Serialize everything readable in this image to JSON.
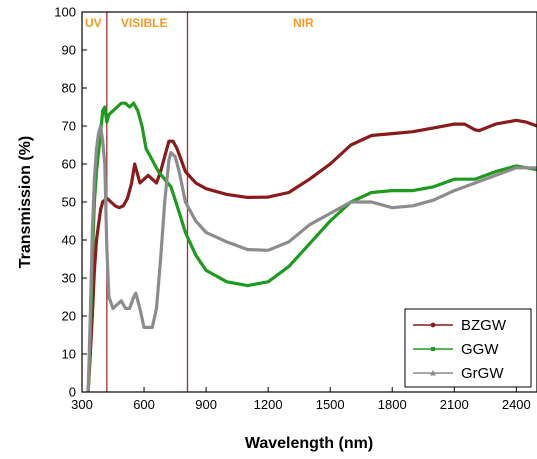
{
  "chart_data": {
    "type": "line",
    "xlabel": "Wavelength (nm)",
    "ylabel": "Transmission (%)",
    "xlim": [
      300,
      2500
    ],
    "ylim": [
      0,
      100
    ],
    "xticks": [
      300,
      600,
      900,
      1200,
      1500,
      1800,
      2100,
      2400
    ],
    "yticks": [
      0,
      10,
      20,
      30,
      40,
      50,
      60,
      70,
      80,
      90,
      100
    ],
    "grid": false,
    "legend_position": "bottom-right",
    "regions": [
      {
        "label": "UV",
        "x_start": 300,
        "x_end": 420
      },
      {
        "label": "VISIBLE",
        "x_start": 420,
        "x_end": 810
      },
      {
        "label": "NIR",
        "x_start": 810,
        "x_end": 2500
      }
    ],
    "region_boundaries": [
      420,
      810
    ],
    "series": [
      {
        "name": "BZGW",
        "color": "#8b1a1a",
        "marker": "circle",
        "points": [
          [
            330,
            0
          ],
          [
            340,
            10
          ],
          [
            350,
            20
          ],
          [
            360,
            32
          ],
          [
            370,
            40
          ],
          [
            380,
            44
          ],
          [
            390,
            48
          ],
          [
            400,
            50
          ],
          [
            420,
            51
          ],
          [
            440,
            50
          ],
          [
            460,
            49
          ],
          [
            480,
            48.5
          ],
          [
            500,
            49
          ],
          [
            520,
            51
          ],
          [
            540,
            55
          ],
          [
            555,
            60
          ],
          [
            565,
            58
          ],
          [
            580,
            55
          ],
          [
            600,
            56
          ],
          [
            620,
            57
          ],
          [
            640,
            56
          ],
          [
            660,
            55
          ],
          [
            680,
            58
          ],
          [
            700,
            62
          ],
          [
            720,
            66
          ],
          [
            740,
            66
          ],
          [
            760,
            64
          ],
          [
            780,
            61
          ],
          [
            800,
            58
          ],
          [
            850,
            55
          ],
          [
            900,
            53.5
          ],
          [
            1000,
            52
          ],
          [
            1100,
            51.2
          ],
          [
            1200,
            51.3
          ],
          [
            1300,
            52.5
          ],
          [
            1400,
            56
          ],
          [
            1500,
            60
          ],
          [
            1600,
            65
          ],
          [
            1700,
            67.5
          ],
          [
            1800,
            68
          ],
          [
            1900,
            68.5
          ],
          [
            2000,
            69.5
          ],
          [
            2100,
            70.5
          ],
          [
            2150,
            70.5
          ],
          [
            2200,
            69
          ],
          [
            2220,
            68.8
          ],
          [
            2300,
            70.5
          ],
          [
            2400,
            71.5
          ],
          [
            2450,
            71
          ],
          [
            2500,
            70
          ]
        ]
      },
      {
        "name": "GGW",
        "color": "#1e9a1e",
        "marker": "square",
        "points": [
          [
            330,
            0
          ],
          [
            340,
            15
          ],
          [
            350,
            35
          ],
          [
            360,
            50
          ],
          [
            370,
            58
          ],
          [
            380,
            63
          ],
          [
            390,
            68
          ],
          [
            400,
            74
          ],
          [
            410,
            75
          ],
          [
            420,
            71
          ],
          [
            430,
            73
          ],
          [
            450,
            74
          ],
          [
            470,
            75
          ],
          [
            490,
            76
          ],
          [
            510,
            76
          ],
          [
            530,
            75
          ],
          [
            550,
            76
          ],
          [
            570,
            74
          ],
          [
            590,
            70
          ],
          [
            610,
            64
          ],
          [
            630,
            62
          ],
          [
            650,
            60
          ],
          [
            670,
            58
          ],
          [
            700,
            56
          ],
          [
            730,
            54
          ],
          [
            760,
            49
          ],
          [
            800,
            42
          ],
          [
            850,
            36
          ],
          [
            900,
            32
          ],
          [
            1000,
            29
          ],
          [
            1100,
            28
          ],
          [
            1200,
            29
          ],
          [
            1300,
            33
          ],
          [
            1400,
            39
          ],
          [
            1500,
            45
          ],
          [
            1600,
            50
          ],
          [
            1700,
            52.5
          ],
          [
            1800,
            53
          ],
          [
            1900,
            53
          ],
          [
            2000,
            54
          ],
          [
            2100,
            56
          ],
          [
            2200,
            56
          ],
          [
            2300,
            58
          ],
          [
            2400,
            59.5
          ],
          [
            2450,
            59
          ],
          [
            2500,
            58.5
          ]
        ]
      },
      {
        "name": "GrGW",
        "color": "#8c8c8c",
        "marker": "triangle",
        "points": [
          [
            330,
            0
          ],
          [
            340,
            20
          ],
          [
            350,
            42
          ],
          [
            360,
            56
          ],
          [
            370,
            64
          ],
          [
            380,
            68
          ],
          [
            390,
            70
          ],
          [
            400,
            66
          ],
          [
            410,
            60
          ],
          [
            420,
            38
          ],
          [
            430,
            25
          ],
          [
            450,
            22
          ],
          [
            470,
            23
          ],
          [
            490,
            24
          ],
          [
            510,
            22
          ],
          [
            530,
            22
          ],
          [
            550,
            25
          ],
          [
            560,
            26
          ],
          [
            580,
            22
          ],
          [
            600,
            17
          ],
          [
            620,
            17
          ],
          [
            640,
            17
          ],
          [
            660,
            22
          ],
          [
            680,
            35
          ],
          [
            700,
            50
          ],
          [
            720,
            61
          ],
          [
            730,
            63
          ],
          [
            750,
            62
          ],
          [
            770,
            58
          ],
          [
            800,
            50
          ],
          [
            850,
            45
          ],
          [
            900,
            42
          ],
          [
            1000,
            39.5
          ],
          [
            1100,
            37.5
          ],
          [
            1200,
            37.3
          ],
          [
            1300,
            39.5
          ],
          [
            1400,
            44
          ],
          [
            1500,
            47
          ],
          [
            1600,
            50
          ],
          [
            1700,
            50
          ],
          [
            1800,
            48.5
          ],
          [
            1900,
            49
          ],
          [
            2000,
            50.5
          ],
          [
            2100,
            53
          ],
          [
            2200,
            55
          ],
          [
            2300,
            57
          ],
          [
            2400,
            59
          ],
          [
            2500,
            59
          ]
        ]
      }
    ]
  }
}
